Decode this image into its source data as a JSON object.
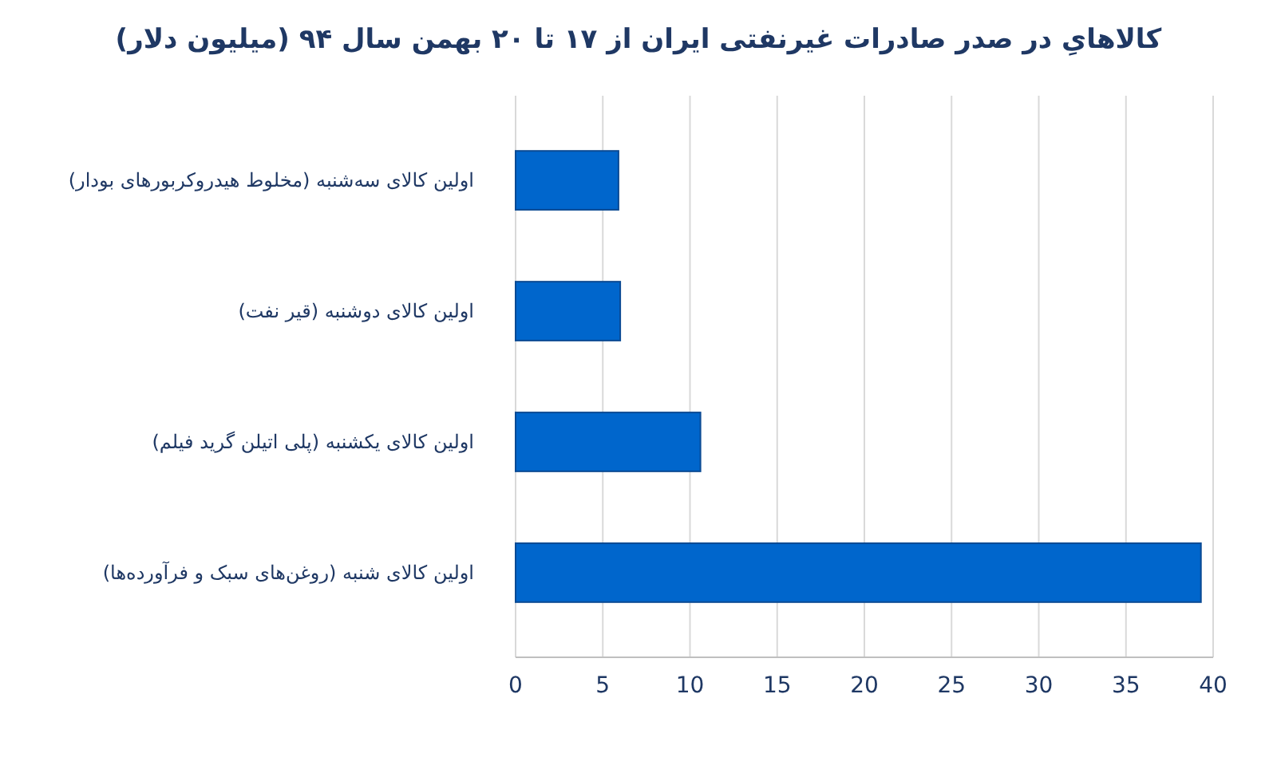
{
  "chart_data": {
    "type": "bar",
    "orientation": "horizontal",
    "title": "کالاهایِ در صدر صادرات غیرنفتی ایران از ۱۷ تا ۲۰ بهمن سال ۹۴ (میلیون دلار)",
    "categories": [
      "اولین کالای سه‌شنبه (مخلوط هیدروکربورهای بودار)",
      "اولین کالای دوشنبه (قیر نفت)",
      "اولین کالای یکشنبه (پلی اتیلن گرید فیلم)",
      "اولین کالای شنبه (روغن‌های سبک و فرآورده‌ها)"
    ],
    "values": [
      5.9,
      6.0,
      10.6,
      39.3
    ],
    "color": "#0066cc",
    "xlim": [
      0,
      40
    ],
    "xticks": [
      0,
      5,
      10,
      15,
      20,
      25,
      30,
      35,
      40
    ],
    "grid": "x"
  }
}
